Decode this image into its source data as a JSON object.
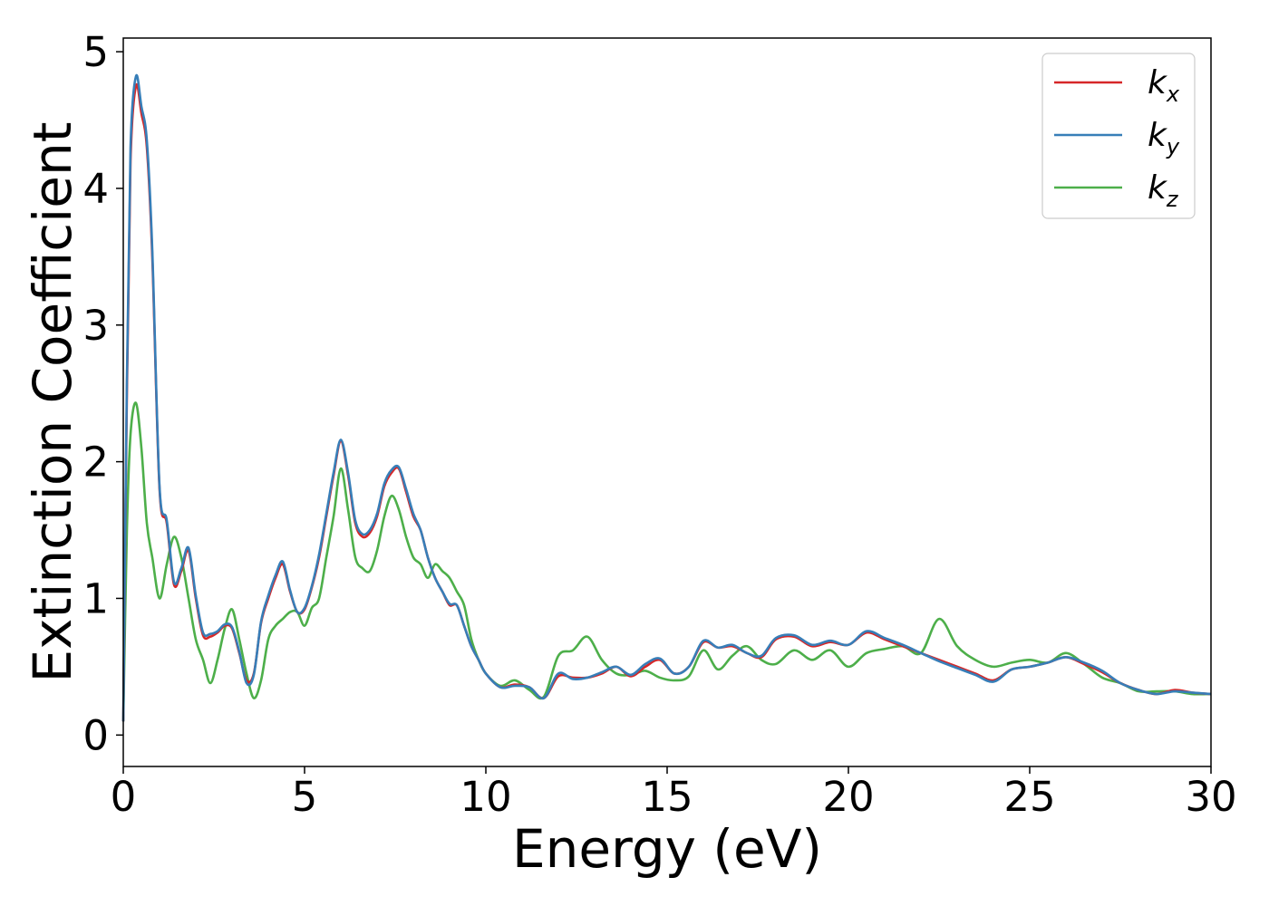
{
  "chart_data": {
    "type": "line",
    "xlabel": "Energy (eV)",
    "ylabel": "Extinction Coefficient",
    "xlim": [
      0,
      30
    ],
    "ylim": [
      -0.23,
      5.1
    ],
    "xticks": [
      0,
      5,
      10,
      15,
      20,
      25,
      30
    ],
    "yticks": [
      0,
      1,
      2,
      3,
      4,
      5
    ],
    "grid": false,
    "legend_position": "top-right",
    "series": [
      {
        "name": "k_x",
        "label_main": "k",
        "label_sub": "x",
        "color": "#d62728",
        "x": [
          0,
          0.1,
          0.2,
          0.35,
          0.5,
          0.65,
          0.8,
          1.0,
          1.2,
          1.4,
          1.6,
          1.8,
          2.0,
          2.2,
          2.4,
          2.6,
          2.8,
          3.0,
          3.2,
          3.4,
          3.6,
          3.8,
          4.0,
          4.2,
          4.4,
          4.6,
          4.8,
          5.0,
          5.2,
          5.4,
          5.6,
          5.8,
          6.0,
          6.2,
          6.4,
          6.6,
          6.8,
          7.0,
          7.2,
          7.4,
          7.6,
          7.8,
          8.0,
          8.2,
          8.4,
          8.6,
          8.8,
          9.0,
          9.2,
          9.4,
          9.6,
          9.8,
          10.0,
          10.4,
          10.8,
          11.2,
          11.6,
          12.0,
          12.4,
          12.8,
          13.2,
          13.6,
          14.0,
          14.4,
          14.8,
          15.2,
          15.6,
          16.0,
          16.4,
          16.8,
          17.2,
          17.6,
          18.0,
          18.5,
          19.0,
          19.5,
          20.0,
          20.5,
          21.0,
          21.5,
          22.0,
          22.5,
          23.0,
          23.5,
          24.0,
          24.5,
          25.0,
          25.5,
          26.0,
          26.5,
          27.0,
          27.5,
          28.0,
          28.5,
          29.0,
          29.5,
          30.0
        ],
        "values": [
          0.1,
          2.5,
          4.2,
          4.75,
          4.55,
          4.3,
          3.5,
          1.8,
          1.55,
          1.1,
          1.2,
          1.35,
          1.0,
          0.73,
          0.72,
          0.75,
          0.8,
          0.78,
          0.6,
          0.4,
          0.45,
          0.82,
          1.0,
          1.15,
          1.25,
          1.05,
          0.9,
          0.92,
          1.08,
          1.3,
          1.6,
          1.9,
          2.15,
          1.9,
          1.55,
          1.45,
          1.48,
          1.6,
          1.82,
          1.92,
          1.95,
          1.78,
          1.6,
          1.5,
          1.3,
          1.15,
          1.05,
          0.95,
          0.95,
          0.8,
          0.65,
          0.55,
          0.45,
          0.35,
          0.37,
          0.35,
          0.27,
          0.43,
          0.42,
          0.42,
          0.45,
          0.5,
          0.43,
          0.5,
          0.55,
          0.45,
          0.5,
          0.68,
          0.64,
          0.65,
          0.6,
          0.57,
          0.7,
          0.72,
          0.65,
          0.68,
          0.66,
          0.75,
          0.7,
          0.65,
          0.6,
          0.55,
          0.5,
          0.45,
          0.4,
          0.48,
          0.5,
          0.53,
          0.57,
          0.52,
          0.46,
          0.38,
          0.33,
          0.3,
          0.33,
          0.31,
          0.3
        ]
      },
      {
        "name": "k_y",
        "label_main": "k",
        "label_sub": "y",
        "color": "#377eb8",
        "x": [
          0,
          0.1,
          0.2,
          0.35,
          0.5,
          0.65,
          0.8,
          1.0,
          1.2,
          1.4,
          1.6,
          1.8,
          2.0,
          2.2,
          2.4,
          2.6,
          2.8,
          3.0,
          3.2,
          3.4,
          3.6,
          3.8,
          4.0,
          4.2,
          4.4,
          4.6,
          4.8,
          5.0,
          5.2,
          5.4,
          5.6,
          5.8,
          6.0,
          6.2,
          6.4,
          6.6,
          6.8,
          7.0,
          7.2,
          7.4,
          7.6,
          7.8,
          8.0,
          8.2,
          8.4,
          8.6,
          8.8,
          9.0,
          9.2,
          9.4,
          9.6,
          9.8,
          10.0,
          10.4,
          10.8,
          11.2,
          11.6,
          12.0,
          12.4,
          12.8,
          13.2,
          13.6,
          14.0,
          14.4,
          14.8,
          15.2,
          15.6,
          16.0,
          16.4,
          16.8,
          17.2,
          17.6,
          18.0,
          18.5,
          19.0,
          19.5,
          20.0,
          20.5,
          21.0,
          21.5,
          22.0,
          22.5,
          23.0,
          23.5,
          24.0,
          24.5,
          25.0,
          25.5,
          26.0,
          26.5,
          27.0,
          27.5,
          28.0,
          28.5,
          29.0,
          29.5,
          30.0
        ],
        "values": [
          0.1,
          2.6,
          4.3,
          4.82,
          4.6,
          4.35,
          3.55,
          1.82,
          1.57,
          1.12,
          1.22,
          1.37,
          1.02,
          0.75,
          0.74,
          0.76,
          0.81,
          0.79,
          0.61,
          0.38,
          0.44,
          0.83,
          1.02,
          1.17,
          1.27,
          1.06,
          0.9,
          0.93,
          1.09,
          1.32,
          1.62,
          1.92,
          2.16,
          1.92,
          1.57,
          1.47,
          1.5,
          1.62,
          1.84,
          1.94,
          1.96,
          1.8,
          1.62,
          1.5,
          1.3,
          1.15,
          1.05,
          0.96,
          0.95,
          0.8,
          0.65,
          0.55,
          0.45,
          0.35,
          0.36,
          0.35,
          0.27,
          0.45,
          0.41,
          0.42,
          0.46,
          0.5,
          0.44,
          0.52,
          0.56,
          0.45,
          0.5,
          0.69,
          0.64,
          0.66,
          0.6,
          0.58,
          0.71,
          0.73,
          0.66,
          0.69,
          0.66,
          0.76,
          0.71,
          0.66,
          0.6,
          0.54,
          0.49,
          0.44,
          0.39,
          0.48,
          0.5,
          0.53,
          0.57,
          0.53,
          0.47,
          0.38,
          0.33,
          0.3,
          0.32,
          0.31,
          0.3
        ]
      },
      {
        "name": "k_z",
        "label_main": "k",
        "label_sub": "z",
        "color": "#4daf4a",
        "x": [
          0,
          0.1,
          0.2,
          0.35,
          0.5,
          0.65,
          0.8,
          1.0,
          1.2,
          1.4,
          1.6,
          1.8,
          2.0,
          2.2,
          2.4,
          2.6,
          2.8,
          3.0,
          3.2,
          3.4,
          3.6,
          3.8,
          4.0,
          4.2,
          4.4,
          4.6,
          4.8,
          5.0,
          5.2,
          5.4,
          5.6,
          5.8,
          6.0,
          6.2,
          6.4,
          6.6,
          6.8,
          7.0,
          7.2,
          7.4,
          7.6,
          7.8,
          8.0,
          8.2,
          8.4,
          8.6,
          8.8,
          9.0,
          9.2,
          9.4,
          9.6,
          9.8,
          10.0,
          10.4,
          10.8,
          11.2,
          11.6,
          12.0,
          12.4,
          12.8,
          13.2,
          13.6,
          14.0,
          14.4,
          14.8,
          15.2,
          15.6,
          16.0,
          16.4,
          16.8,
          17.2,
          17.6,
          18.0,
          18.5,
          19.0,
          19.5,
          20.0,
          20.5,
          21.0,
          21.5,
          22.0,
          22.5,
          23.0,
          23.5,
          24.0,
          24.5,
          25.0,
          25.5,
          26.0,
          26.5,
          27.0,
          27.5,
          28.0,
          28.5,
          29.0,
          29.5,
          30.0
        ],
        "values": [
          0.1,
          1.5,
          2.2,
          2.43,
          2.1,
          1.55,
          1.3,
          1.0,
          1.25,
          1.45,
          1.3,
          1.0,
          0.7,
          0.55,
          0.38,
          0.55,
          0.78,
          0.92,
          0.7,
          0.45,
          0.27,
          0.4,
          0.7,
          0.8,
          0.85,
          0.9,
          0.9,
          0.8,
          0.93,
          1.0,
          1.3,
          1.6,
          1.95,
          1.65,
          1.3,
          1.22,
          1.2,
          1.35,
          1.6,
          1.75,
          1.65,
          1.45,
          1.3,
          1.25,
          1.15,
          1.25,
          1.2,
          1.15,
          1.05,
          0.95,
          0.7,
          0.55,
          0.45,
          0.36,
          0.4,
          0.33,
          0.28,
          0.58,
          0.62,
          0.72,
          0.55,
          0.45,
          0.44,
          0.47,
          0.42,
          0.4,
          0.43,
          0.62,
          0.48,
          0.58,
          0.65,
          0.55,
          0.52,
          0.62,
          0.55,
          0.62,
          0.5,
          0.6,
          0.63,
          0.65,
          0.6,
          0.85,
          0.65,
          0.55,
          0.5,
          0.53,
          0.55,
          0.53,
          0.6,
          0.52,
          0.42,
          0.38,
          0.32,
          0.32,
          0.32,
          0.3,
          0.3
        ]
      }
    ]
  }
}
